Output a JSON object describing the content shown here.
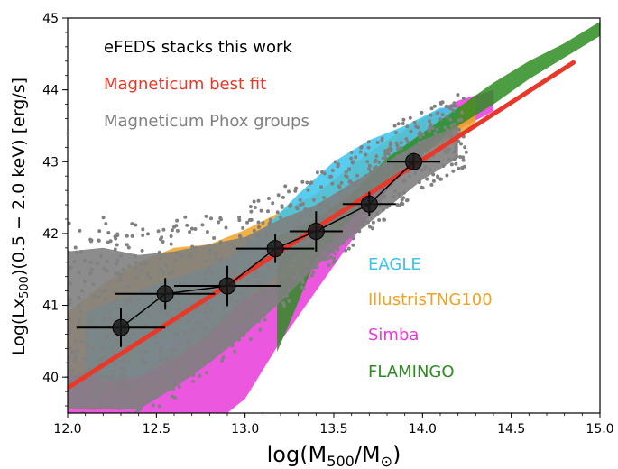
{
  "chart_data": {
    "type": "scatter",
    "title": "",
    "xlabel": "log(M500/M⊙)",
    "ylabel": "Log(Lx500)(0.5 − 2.0 keV) [erg/s]",
    "xlim": [
      12.0,
      15.0
    ],
    "ylim": [
      39.5,
      45.0
    ],
    "x_ticks": [
      "12.0",
      "12.5",
      "13.0",
      "13.5",
      "14.0",
      "14.5",
      "15.0"
    ],
    "y_ticks": [
      "40",
      "41",
      "42",
      "43",
      "44",
      "45"
    ],
    "grid": false,
    "legend": [
      {
        "label": "eFEDS stacks this work",
        "color": "#000000"
      },
      {
        "label": "Magneticum best fit",
        "color": "#e8382a"
      },
      {
        "label": "Magneticum Phox groups",
        "color": "#808080"
      }
    ],
    "model_labels": [
      {
        "label": "EAGLE",
        "color": "#3bc4ec"
      },
      {
        "label": "IllustrisTNG100",
        "color": "#f0a323"
      },
      {
        "label": "Simba",
        "color": "#e83ad8"
      },
      {
        "label": "FLAMINGO",
        "color": "#2e8c22"
      }
    ],
    "efeds_stacks": [
      {
        "x": 12.3,
        "y": 40.69,
        "xerr": 0.25,
        "yerr": 0.27
      },
      {
        "x": 12.55,
        "y": 41.16,
        "xerr": 0.28,
        "yerr": 0.22
      },
      {
        "x": 12.9,
        "y": 41.27,
        "xerr": 0.3,
        "yerr": 0.28
      },
      {
        "x": 13.17,
        "y": 41.79,
        "xerr": 0.22,
        "yerr": 0.2
      },
      {
        "x": 13.4,
        "y": 42.03,
        "xerr": 0.15,
        "yerr": 0.28
      },
      {
        "x": 13.7,
        "y": 42.41,
        "xerr": 0.15,
        "yerr": 0.17
      },
      {
        "x": 13.95,
        "y": 43.0,
        "xerr": 0.15,
        "yerr": 0.12
      }
    ],
    "magneticum_best_fit": [
      [
        12.0,
        39.85
      ],
      [
        14.85,
        44.38
      ]
    ],
    "bands": [
      {
        "name": "Simba",
        "color": "#e83ad8",
        "alpha": 0.85,
        "upper": [
          [
            12.0,
            40.3
          ],
          [
            12.2,
            40.1
          ],
          [
            12.4,
            40.0
          ],
          [
            12.6,
            40.5
          ],
          [
            12.8,
            40.9
          ],
          [
            13.0,
            41.3
          ],
          [
            13.2,
            41.7
          ],
          [
            13.4,
            42.2
          ],
          [
            13.6,
            42.7
          ],
          [
            13.8,
            43.2
          ],
          [
            14.0,
            43.6
          ],
          [
            14.2,
            43.85
          ],
          [
            14.4,
            44.0
          ]
        ],
        "lower": [
          [
            14.4,
            43.7
          ],
          [
            14.2,
            43.45
          ],
          [
            14.0,
            43.1
          ],
          [
            13.8,
            42.6
          ],
          [
            13.6,
            41.9
          ],
          [
            13.4,
            41.2
          ],
          [
            13.2,
            40.5
          ],
          [
            13.0,
            39.7
          ],
          [
            12.9,
            39.5
          ],
          [
            12.0,
            39.5
          ]
        ]
      },
      {
        "name": "IllustrisTNG100",
        "color": "#f0a323",
        "alpha": 0.85,
        "upper": [
          [
            12.0,
            40.9
          ],
          [
            12.2,
            41.3
          ],
          [
            12.4,
            41.6
          ],
          [
            12.6,
            41.8
          ],
          [
            12.8,
            41.85
          ],
          [
            13.0,
            42.05
          ],
          [
            13.2,
            42.3
          ],
          [
            13.4,
            42.55
          ],
          [
            13.6,
            42.95
          ],
          [
            13.8,
            43.3
          ],
          [
            14.0,
            43.6
          ],
          [
            14.2,
            43.75
          ],
          [
            14.3,
            43.9
          ]
        ],
        "lower": [
          [
            14.3,
            43.5
          ],
          [
            14.1,
            43.25
          ],
          [
            13.9,
            42.95
          ],
          [
            13.7,
            42.55
          ],
          [
            13.5,
            42.0
          ],
          [
            13.3,
            41.45
          ],
          [
            13.1,
            41.2
          ],
          [
            12.9,
            41.0
          ],
          [
            12.7,
            40.8
          ],
          [
            12.5,
            40.5
          ],
          [
            12.3,
            40.2
          ],
          [
            12.1,
            40.0
          ],
          [
            12.0,
            40.05
          ]
        ]
      },
      {
        "name": "EAGLE",
        "color": "#3bc4ec",
        "alpha": 0.85,
        "upper": [
          [
            12.1,
            40.9
          ],
          [
            12.3,
            41.1
          ],
          [
            12.5,
            41.3
          ],
          [
            12.7,
            41.45
          ],
          [
            12.9,
            41.65
          ],
          [
            13.1,
            42.05
          ],
          [
            13.3,
            42.55
          ],
          [
            13.5,
            43.0
          ],
          [
            13.7,
            43.3
          ],
          [
            13.9,
            43.5
          ],
          [
            14.1,
            43.75
          ],
          [
            14.2,
            43.75
          ]
        ],
        "lower": [
          [
            14.2,
            43.55
          ],
          [
            14.0,
            43.2
          ],
          [
            13.8,
            42.8
          ],
          [
            13.6,
            42.35
          ],
          [
            13.4,
            41.9
          ],
          [
            13.2,
            41.45
          ],
          [
            13.0,
            41.1
          ],
          [
            12.8,
            40.6
          ],
          [
            12.6,
            40.25
          ],
          [
            12.4,
            40.0
          ],
          [
            12.2,
            39.95
          ],
          [
            12.1,
            40.05
          ]
        ]
      },
      {
        "name": "FLAMINGO",
        "color": "#2e8c22",
        "alpha": 0.85,
        "upper": [
          [
            13.18,
            41.95
          ],
          [
            13.4,
            42.2
          ],
          [
            13.6,
            42.55
          ],
          [
            13.8,
            43.05
          ],
          [
            14.0,
            43.4
          ],
          [
            14.2,
            43.75
          ],
          [
            14.4,
            44.1
          ],
          [
            14.6,
            44.4
          ],
          [
            14.8,
            44.65
          ],
          [
            15.0,
            44.95
          ]
        ],
        "lower": [
          [
            15.0,
            44.75
          ],
          [
            14.8,
            44.45
          ],
          [
            14.6,
            44.15
          ],
          [
            14.4,
            43.8
          ],
          [
            14.2,
            43.5
          ],
          [
            14.0,
            43.1
          ],
          [
            13.8,
            42.75
          ],
          [
            13.6,
            42.2
          ],
          [
            13.4,
            41.65
          ],
          [
            13.25,
            40.75
          ],
          [
            13.18,
            40.35
          ]
        ]
      }
    ],
    "phox_groups": {
      "color": "#808080",
      "dense_region_upper": [
        [
          12.0,
          41.75
        ],
        [
          12.2,
          41.8
        ],
        [
          12.4,
          41.7
        ],
        [
          12.6,
          41.75
        ],
        [
          12.8,
          41.85
        ],
        [
          13.0,
          41.95
        ],
        [
          13.2,
          42.2
        ],
        [
          13.4,
          42.4
        ],
        [
          13.6,
          42.7
        ],
        [
          13.8,
          43.0
        ],
        [
          14.0,
          43.3
        ],
        [
          14.2,
          43.5
        ]
      ],
      "dense_region_lower": [
        [
          14.2,
          43.05
        ],
        [
          14.0,
          42.75
        ],
        [
          13.8,
          42.35
        ],
        [
          13.6,
          41.95
        ],
        [
          13.4,
          41.55
        ],
        [
          13.2,
          41.05
        ],
        [
          13.0,
          40.6
        ],
        [
          12.8,
          40.2
        ],
        [
          12.6,
          39.85
        ],
        [
          12.4,
          39.55
        ],
        [
          12.0,
          39.55
        ]
      ]
    }
  }
}
